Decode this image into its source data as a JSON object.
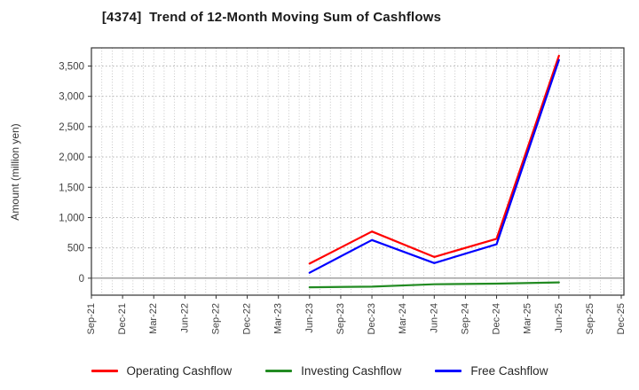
{
  "chart_data": {
    "type": "line",
    "title": "[4374]  Trend of 12-Month Moving Sum of Cashflows",
    "ylabel": "Amount (million yen)",
    "xlabel": "",
    "unit": "million yen",
    "x_tick_labels": [
      "Sep-21",
      "Dec-21",
      "Mar-22",
      "Jun-22",
      "Sep-22",
      "Dec-22",
      "Mar-23",
      "Jun-23",
      "Sep-23",
      "Dec-23",
      "Mar-24",
      "Jun-24",
      "Sep-24",
      "Dec-24",
      "Mar-25",
      "Jun-25",
      "Sep-25",
      "Dec-25"
    ],
    "y_tick_labels": [
      "0",
      "500",
      "1,000",
      "1,500",
      "2,000",
      "2,500",
      "3,000",
      "3,500"
    ],
    "y_tick_values": [
      0,
      500,
      1000,
      1500,
      2000,
      2500,
      3000,
      3500
    ],
    "ylim": [
      -280,
      3800
    ],
    "grid": true,
    "x_minor_gridlines_per_quarter": 3,
    "legend_position": "bottom",
    "series": [
      {
        "name": "Operating Cashflow",
        "color": "#ff0000",
        "x": [
          "Jun-23",
          "Dec-23",
          "Jun-24",
          "Dec-24",
          "Jun-25"
        ],
        "values": [
          240,
          770,
          350,
          650,
          3670
        ]
      },
      {
        "name": "Investing Cashflow",
        "color": "#228b22",
        "x": [
          "Jun-23",
          "Dec-23",
          "Jun-24",
          "Dec-24",
          "Jun-25"
        ],
        "values": [
          -150,
          -140,
          -100,
          -90,
          -70
        ]
      },
      {
        "name": "Free Cashflow",
        "color": "#0000ff",
        "x": [
          "Jun-23",
          "Dec-23",
          "Jun-24",
          "Dec-24",
          "Jun-25"
        ],
        "values": [
          90,
          630,
          250,
          560,
          3600
        ]
      }
    ],
    "zero_line_color": "#808080",
    "grid_color": "#b8b8b8",
    "spine_color": "#333333",
    "tick_text_color": "#404040"
  }
}
